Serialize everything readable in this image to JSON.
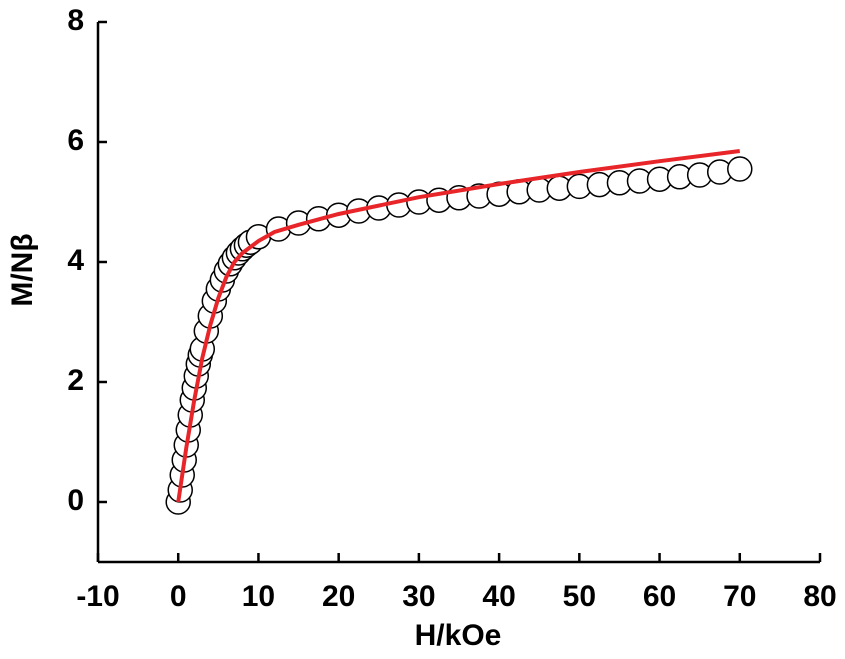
{
  "chart_data": {
    "type": "scatter",
    "xlabel": "H/kOe",
    "ylabel": "M/Nβ",
    "xlim": [
      -10,
      80
    ],
    "ylim": [
      -1,
      8
    ],
    "xticks": [
      -10,
      0,
      10,
      20,
      30,
      40,
      50,
      60,
      70,
      80
    ],
    "yticks": [
      0,
      2,
      4,
      6,
      8
    ],
    "series": [
      {
        "mode": "markers",
        "color": "#000000",
        "x": [
          0,
          0.25,
          0.5,
          0.75,
          1,
          1.25,
          1.5,
          1.75,
          2,
          2.25,
          2.5,
          2.75,
          3,
          3.5,
          4,
          4.5,
          5,
          5.5,
          6,
          6.5,
          7,
          7.5,
          8,
          8.5,
          9,
          10,
          12.5,
          15,
          17.5,
          20,
          22.5,
          25,
          27.5,
          30,
          32.5,
          35,
          37.5,
          40,
          42.5,
          45,
          47.5,
          50,
          52.5,
          55,
          57.5,
          60,
          62.5,
          65,
          67.5,
          70
        ],
        "values": [
          0,
          0.2,
          0.45,
          0.7,
          0.95,
          1.2,
          1.45,
          1.7,
          1.9,
          2.1,
          2.3,
          2.45,
          2.55,
          2.85,
          3.1,
          3.35,
          3.55,
          3.7,
          3.85,
          3.97,
          4.07,
          4.15,
          4.22,
          4.28,
          4.33,
          4.42,
          4.55,
          4.65,
          4.72,
          4.78,
          4.85,
          4.9,
          4.95,
          5.0,
          5.03,
          5.07,
          5.1,
          5.13,
          5.17,
          5.2,
          5.23,
          5.26,
          5.29,
          5.32,
          5.35,
          5.38,
          5.42,
          5.45,
          5.5,
          5.55
        ]
      },
      {
        "mode": "line",
        "color": "#e8262a",
        "x": [
          0,
          1,
          2,
          3,
          4,
          5,
          6,
          7,
          8,
          10,
          12,
          15,
          20,
          30,
          40,
          50,
          60,
          70
        ],
        "values": [
          0,
          0.9,
          1.7,
          2.4,
          2.95,
          3.4,
          3.75,
          4.0,
          4.15,
          4.35,
          4.5,
          4.62,
          4.8,
          5.08,
          5.3,
          5.5,
          5.68,
          5.85
        ]
      }
    ]
  }
}
